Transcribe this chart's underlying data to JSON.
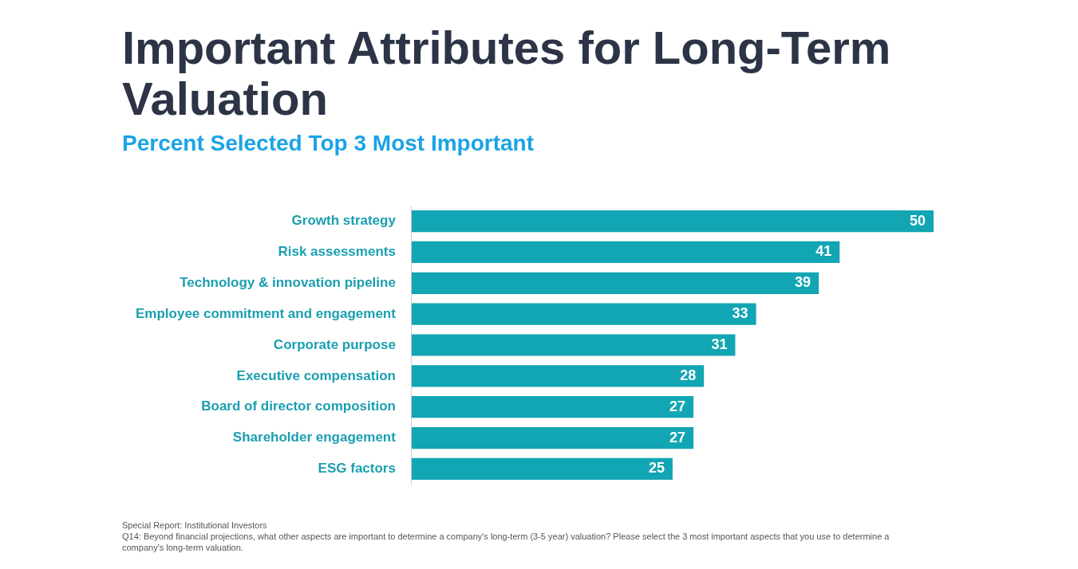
{
  "chart_data": {
    "type": "bar",
    "orientation": "horizontal",
    "title": "Important Attributes for Long-Term Valuation",
    "subtitle": "Percent Selected Top 3 Most Important",
    "categories": [
      "Growth strategy",
      "Risk assessments",
      "Technology & innovation pipeline",
      "Employee commitment and engagement",
      "Corporate purpose",
      "Executive compensation",
      "Board of director composition",
      "Shareholder engagement",
      "ESG factors"
    ],
    "values": [
      50,
      41,
      39,
      33,
      31,
      28,
      27,
      27,
      25
    ],
    "color": "#12a5b3",
    "data_labels": true,
    "grid": false,
    "legend": false,
    "tick_labels": "y",
    "annotations": [
      "Special Report: Institutional Investors",
      "Q14: Beyond financial projections, what other aspects are important to determine a company's long-term (3-5 year) valuation? Please select the 3 most important aspects that you use to determine a company's long-term valuation."
    ]
  }
}
